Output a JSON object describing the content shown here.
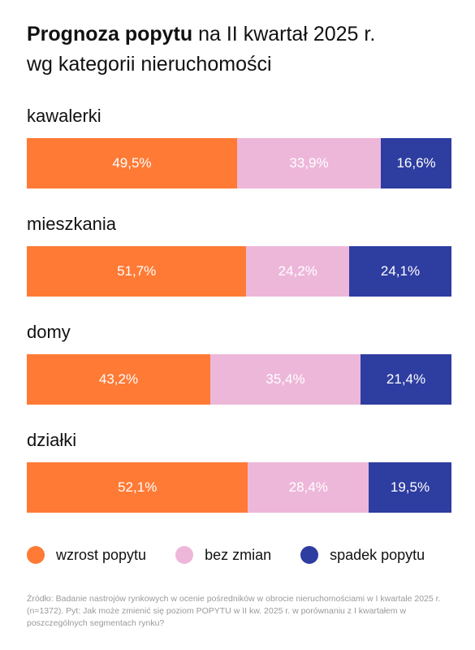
{
  "title": {
    "bold": "Prognoza popytu",
    "rest_line1": " na II kwartał 2025 r.",
    "line2": "wg kategorii nieruchomości"
  },
  "colors": {
    "wzrost": "#FF7A35",
    "bez_zmian": "#EDB7DA",
    "spadek": "#2E3DA0"
  },
  "chart_data": {
    "type": "bar",
    "stacked": true,
    "orientation": "horizontal",
    "unit": "%",
    "categories": [
      "kawalerki",
      "mieszkania",
      "domy",
      "działki"
    ],
    "series": [
      {
        "name": "wzrost popytu",
        "values": [
          49.5,
          51.7,
          43.2,
          52.1
        ],
        "labels": [
          "49,5%",
          "51,7%",
          "43,2%",
          "52,1%"
        ]
      },
      {
        "name": "bez zmian",
        "values": [
          33.9,
          24.2,
          35.4,
          28.4
        ],
        "labels": [
          "33,9%",
          "24,2%",
          "35,4%",
          "28,4%"
        ]
      },
      {
        "name": "spadek popytu",
        "values": [
          16.6,
          24.1,
          21.4,
          19.5
        ],
        "labels": [
          "16,6%",
          "24,1%",
          "21,4%",
          "19,5%"
        ]
      }
    ],
    "legend_position": "bottom"
  },
  "source": "Źródło: Badanie nastrojów rynkowych w ocenie pośredników w obrocie nieruchomościami w I kwartale 2025 r. (n=1372). Pyt: Jak może zmienić się poziom POPYTU w II kw. 2025 r. w porównaniu z I kwartałem w poszczególnych segmentach rynku?"
}
